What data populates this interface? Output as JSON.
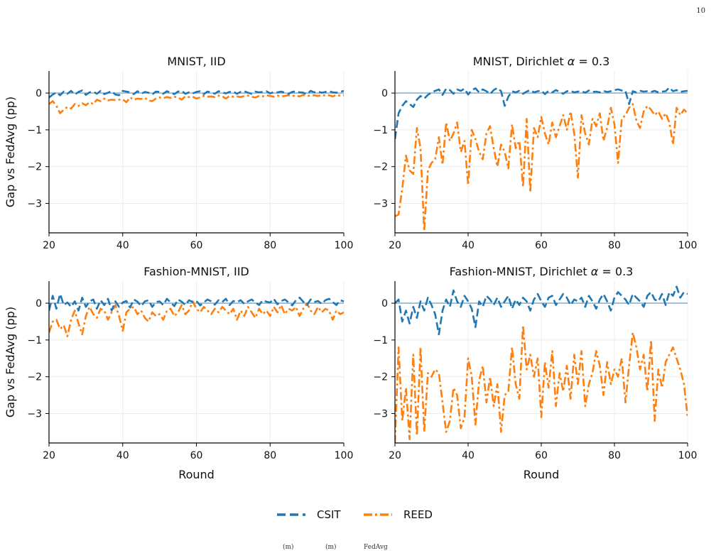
{
  "page": {
    "number": "10"
  },
  "legend": {
    "items": [
      {
        "label": "CSIT",
        "color": "#1f77b4",
        "dash": "dashed"
      },
      {
        "label": "REED",
        "color": "#ff7f0e",
        "dash": "dash-dot"
      }
    ]
  },
  "footer_fragments": [
    "(m)",
    "(m)",
    "FedAvg"
  ],
  "chart_data": [
    {
      "type": "line",
      "title": "MNIST, IID",
      "xlabel": "",
      "ylabel": "Gap vs FedAvg (pp)",
      "xlim": [
        20,
        100
      ],
      "ylim": [
        -3.8,
        0.6
      ],
      "xticks": [
        20,
        40,
        60,
        80,
        100
      ],
      "yticks": [
        0,
        -1,
        -2,
        -3
      ],
      "reference_line": 0,
      "grid": true,
      "series": [
        {
          "name": "CSIT",
          "color": "#1f77b4",
          "x_start": 20,
          "x_step": 1,
          "values": [
            -0.12,
            -0.04,
            0.02,
            -0.06,
            0.04,
            -0.02,
            0.06,
            -0.04,
            0.03,
            0.07,
            -0.05,
            0.02,
            0.04,
            -0.02,
            0.06,
            -0.03,
            0.01,
            0.05,
            -0.04,
            -0.06,
            0.06,
            0.04,
            0.02,
            -0.03,
            0.05,
            -0.02,
            0.03,
            0.01,
            -0.04,
            0.04,
            0.03,
            -0.02,
            0.05,
            0.01,
            -0.03,
            0.04,
            0.06,
            -0.02,
            0.02,
            -0.01,
            0.03,
            0.05,
            -0.03,
            0.04,
            0.02,
            -0.02,
            0.05,
            0.02,
            -0.01,
            0.03,
            0.04,
            -0.02,
            0.03,
            0.05,
            0.01,
            -0.02,
            0.04,
            0.02,
            0.03,
            0.05,
            -0.01,
            0.03,
            0.02,
            0.04,
            0.01,
            -0.02,
            0.03,
            0.05,
            0.02,
            0.01,
            -0.03,
            0.06,
            0.02,
            0.04,
            0.01,
            0.03,
            0.05,
            0.02,
            0.01,
            0.03,
            0.06
          ]
        },
        {
          "name": "REED",
          "color": "#ff7f0e",
          "x_start": 20,
          "x_step": 1,
          "values": [
            -0.3,
            -0.22,
            -0.35,
            -0.55,
            -0.45,
            -0.38,
            -0.42,
            -0.3,
            -0.35,
            -0.28,
            -0.33,
            -0.25,
            -0.3,
            -0.18,
            -0.22,
            -0.15,
            -0.2,
            -0.18,
            -0.19,
            -0.18,
            -0.17,
            -0.25,
            -0.12,
            -0.18,
            -0.15,
            -0.16,
            -0.13,
            -0.2,
            -0.22,
            -0.15,
            -0.12,
            -0.14,
            -0.11,
            -0.13,
            -0.1,
            -0.12,
            -0.18,
            -0.09,
            -0.11,
            -0.1,
            -0.15,
            -0.12,
            -0.08,
            -0.1,
            -0.09,
            -0.11,
            -0.07,
            -0.09,
            -0.15,
            -0.08,
            -0.1,
            -0.09,
            -0.11,
            -0.08,
            -0.07,
            -0.1,
            -0.12,
            -0.08,
            -0.09,
            -0.06,
            -0.08,
            -0.1,
            -0.07,
            -0.09,
            -0.08,
            -0.06,
            -0.08,
            -0.07,
            -0.09,
            -0.05,
            -0.08,
            -0.07,
            -0.06,
            -0.08,
            -0.05,
            -0.07,
            -0.06,
            -0.09,
            -0.05,
            -0.07,
            -0.06
          ]
        }
      ]
    },
    {
      "type": "line",
      "title": "MNIST, Dirichlet α = 0.3",
      "xlabel": "",
      "ylabel": "",
      "xlim": [
        20,
        100
      ],
      "ylim": [
        -3.8,
        0.6
      ],
      "xticks": [
        20,
        40,
        60,
        80,
        100
      ],
      "yticks": [
        0,
        -1,
        -2,
        -3
      ],
      "reference_line": 0,
      "grid": true,
      "series": [
        {
          "name": "CSIT",
          "color": "#1f77b4",
          "x_start": 20,
          "x_step": 1,
          "values": [
            -1.25,
            -0.55,
            -0.35,
            -0.22,
            -0.3,
            -0.38,
            -0.18,
            -0.08,
            -0.15,
            -0.05,
            0.02,
            0.06,
            0.1,
            -0.05,
            0.12,
            0.08,
            -0.02,
            0.1,
            0.06,
            0.12,
            -0.04,
            0.08,
            0.13,
            0.02,
            0.1,
            0.05,
            -0.03,
            0.08,
            0.14,
            0.05,
            -0.35,
            -0.1,
            0.05,
            0.02,
            0.06,
            -0.02,
            0.04,
            0.08,
            0.02,
            0.05,
            0.07,
            -0.03,
            0.06,
            0.02,
            0.08,
            0.03,
            -0.02,
            0.05,
            0.06,
            0.02,
            0.04,
            0.05,
            0.01,
            0.07,
            0.03,
            0.04,
            0.02,
            0.06,
            0.03,
            0.05,
            0.08,
            0.1,
            0.07,
            0.06,
            -0.3,
            0.05,
            0.02,
            0.06,
            0.04,
            0.05,
            0.03,
            0.06,
            0.02,
            0.04,
            0.05,
            0.15,
            0.05,
            0.08,
            0.03,
            0.05,
            0.06
          ]
        },
        {
          "name": "REED",
          "color": "#ff7f0e",
          "x_start": 20,
          "x_step": 1,
          "values": [
            -3.35,
            -3.3,
            -2.6,
            -1.7,
            -2.1,
            -2.2,
            -0.95,
            -1.5,
            -3.75,
            -2.1,
            -1.9,
            -1.8,
            -1.2,
            -1.95,
            -0.8,
            -1.3,
            -1.1,
            -0.8,
            -1.6,
            -1.3,
            -2.5,
            -1.0,
            -1.25,
            -1.6,
            -1.8,
            -1.1,
            -0.9,
            -1.5,
            -2.0,
            -1.4,
            -1.6,
            -2.05,
            -0.85,
            -1.5,
            -1.3,
            -2.55,
            -0.7,
            -2.7,
            -0.95,
            -1.2,
            -0.65,
            -1.1,
            -1.4,
            -0.8,
            -1.2,
            -0.9,
            -0.6,
            -1.0,
            -0.5,
            -1.1,
            -2.3,
            -0.6,
            -1.1,
            -1.4,
            -0.7,
            -0.9,
            -0.55,
            -1.3,
            -0.95,
            -0.4,
            -0.85,
            -1.9,
            -0.7,
            -0.6,
            -0.4,
            -0.3,
            -0.75,
            -0.95,
            -0.5,
            -0.35,
            -0.45,
            -0.6,
            -0.5,
            -0.7,
            -0.55,
            -0.8,
            -1.4,
            -0.4,
            -0.6,
            -0.45,
            -0.55
          ]
        }
      ]
    },
    {
      "type": "line",
      "title": "Fashion-MNIST, IID",
      "xlabel": "Round",
      "ylabel": "Gap vs FedAvg (pp)",
      "xlim": [
        20,
        100
      ],
      "ylim": [
        -3.8,
        0.6
      ],
      "xticks": [
        20,
        40,
        60,
        80,
        100
      ],
      "yticks": [
        0,
        -1,
        -2,
        -3
      ],
      "reference_line": 0,
      "grid": true,
      "series": [
        {
          "name": "CSIT",
          "color": "#1f77b4",
          "x_start": 20,
          "x_step": 1,
          "values": [
            -0.2,
            0.2,
            -0.15,
            0.25,
            -0.05,
            0.02,
            -0.1,
            0.05,
            -0.2,
            0.15,
            -0.1,
            0.05,
            0.1,
            -0.15,
            0.08,
            -0.05,
            0.12,
            -0.2,
            0.05,
            -0.1,
            0.02,
            0.06,
            -0.12,
            0.1,
            0.04,
            -0.08,
            0.05,
            0.08,
            -0.1,
            0.03,
            0.05,
            -0.05,
            0.12,
            0.02,
            -0.08,
            0.1,
            0.04,
            -0.05,
            0.08,
            0.03,
            0.06,
            -0.06,
            0.02,
            0.1,
            0.05,
            -0.04,
            0.08,
            0.03,
            0.12,
            -0.05,
            0.06,
            0.03,
            0.08,
            -0.02,
            0.05,
            0.1,
            0.02,
            -0.05,
            0.08,
            0.04,
            0.02,
            0.12,
            -0.03,
            0.06,
            0.1,
            0.02,
            -0.06,
            0.08,
            0.15,
            0.04,
            -0.05,
            0.1,
            0.03,
            0.06,
            -0.02,
            0.08,
            0.12,
            0.03,
            -0.05,
            0.08,
            0.05
          ]
        },
        {
          "name": "REED",
          "color": "#ff7f0e",
          "x_start": 20,
          "x_step": 1,
          "values": [
            -0.8,
            -0.5,
            -0.45,
            -0.7,
            -0.6,
            -0.9,
            -0.45,
            -0.2,
            -0.55,
            -0.85,
            -0.35,
            -0.1,
            -0.3,
            -0.4,
            -0.15,
            -0.2,
            -0.45,
            -0.25,
            -0.05,
            -0.35,
            -0.75,
            -0.25,
            -0.15,
            -0.1,
            -0.3,
            -0.2,
            -0.4,
            -0.5,
            -0.25,
            -0.35,
            -0.3,
            -0.45,
            -0.2,
            -0.15,
            -0.35,
            -0.25,
            -0.05,
            -0.3,
            -0.2,
            0.05,
            -0.15,
            -0.25,
            -0.1,
            -0.2,
            -0.3,
            -0.15,
            -0.25,
            -0.1,
            -0.2,
            -0.3,
            -0.15,
            -0.45,
            -0.2,
            -0.35,
            -0.1,
            -0.25,
            -0.4,
            -0.15,
            -0.3,
            -0.2,
            -0.35,
            -0.1,
            -0.25,
            -0.05,
            -0.3,
            -0.15,
            -0.2,
            -0.1,
            -0.35,
            -0.15,
            0.0,
            -0.2,
            -0.3,
            -0.1,
            -0.25,
            -0.15,
            -0.2,
            -0.45,
            -0.2,
            -0.3,
            -0.25
          ]
        }
      ]
    },
    {
      "type": "line",
      "title": "Fashion-MNIST, Dirichlet α = 0.3",
      "xlabel": "Round",
      "ylabel": "",
      "xlim": [
        20,
        100
      ],
      "ylim": [
        -3.8,
        0.6
      ],
      "xticks": [
        20,
        40,
        60,
        80,
        100
      ],
      "yticks": [
        0,
        -1,
        -2,
        -3
      ],
      "reference_line": 0,
      "grid": true,
      "series": [
        {
          "name": "CSIT",
          "color": "#1f77b4",
          "x_start": 20,
          "x_step": 1,
          "values": [
            0.0,
            0.1,
            -0.5,
            -0.2,
            -0.55,
            -0.1,
            -0.4,
            0.05,
            -0.2,
            0.15,
            -0.05,
            -0.3,
            -0.85,
            -0.2,
            0.1,
            -0.1,
            0.35,
            0.05,
            -0.1,
            0.2,
            0.05,
            -0.15,
            -0.65,
            0.05,
            -0.1,
            0.2,
            0.1,
            -0.05,
            0.15,
            -0.1,
            0.05,
            0.2,
            -0.15,
            0.1,
            -0.05,
            0.15,
            0.05,
            -0.2,
            0.1,
            0.25,
            0.05,
            -0.1,
            0.15,
            0.2,
            -0.05,
            0.1,
            0.25,
            0.15,
            -0.05,
            0.1,
            0.05,
            0.15,
            -0.1,
            0.2,
            0.05,
            -0.15,
            0.1,
            0.25,
            0.05,
            -0.2,
            0.15,
            0.3,
            0.2,
            0.1,
            -0.05,
            0.25,
            0.15,
            0.05,
            -0.1,
            0.2,
            0.3,
            0.1,
            0.05,
            0.25,
            -0.05,
            0.3,
            0.2,
            0.45,
            0.15,
            0.3,
            0.25
          ]
        },
        {
          "name": "REED",
          "color": "#ff7f0e",
          "x_start": 20,
          "x_step": 1,
          "values": [
            -3.8,
            -1.2,
            -3.2,
            -2.3,
            -3.7,
            -1.4,
            -3.6,
            -1.2,
            -3.5,
            -1.9,
            -2.0,
            -1.8,
            -1.9,
            -2.7,
            -3.5,
            -3.2,
            -2.3,
            -2.5,
            -3.4,
            -3.1,
            -1.5,
            -2.0,
            -3.3,
            -2.1,
            -1.7,
            -2.7,
            -2.0,
            -2.8,
            -2.2,
            -3.5,
            -2.5,
            -2.4,
            -1.2,
            -2.2,
            -2.6,
            -0.6,
            -1.8,
            -1.4,
            -2.0,
            -1.5,
            -3.1,
            -1.6,
            -2.3,
            -1.3,
            -2.8,
            -1.9,
            -2.4,
            -1.7,
            -2.6,
            -1.4,
            -2.2,
            -1.3,
            -2.8,
            -2.2,
            -1.9,
            -1.3,
            -1.7,
            -2.5,
            -1.6,
            -2.2,
            -1.8,
            -2.0,
            -1.5,
            -2.7,
            -1.7,
            -0.8,
            -1.2,
            -1.8,
            -1.4,
            -2.4,
            -1.0,
            -3.2,
            -1.8,
            -2.3,
            -1.6,
            -1.4,
            -1.2,
            -1.5,
            -1.8,
            -2.2,
            -3.1
          ]
        }
      ]
    }
  ]
}
